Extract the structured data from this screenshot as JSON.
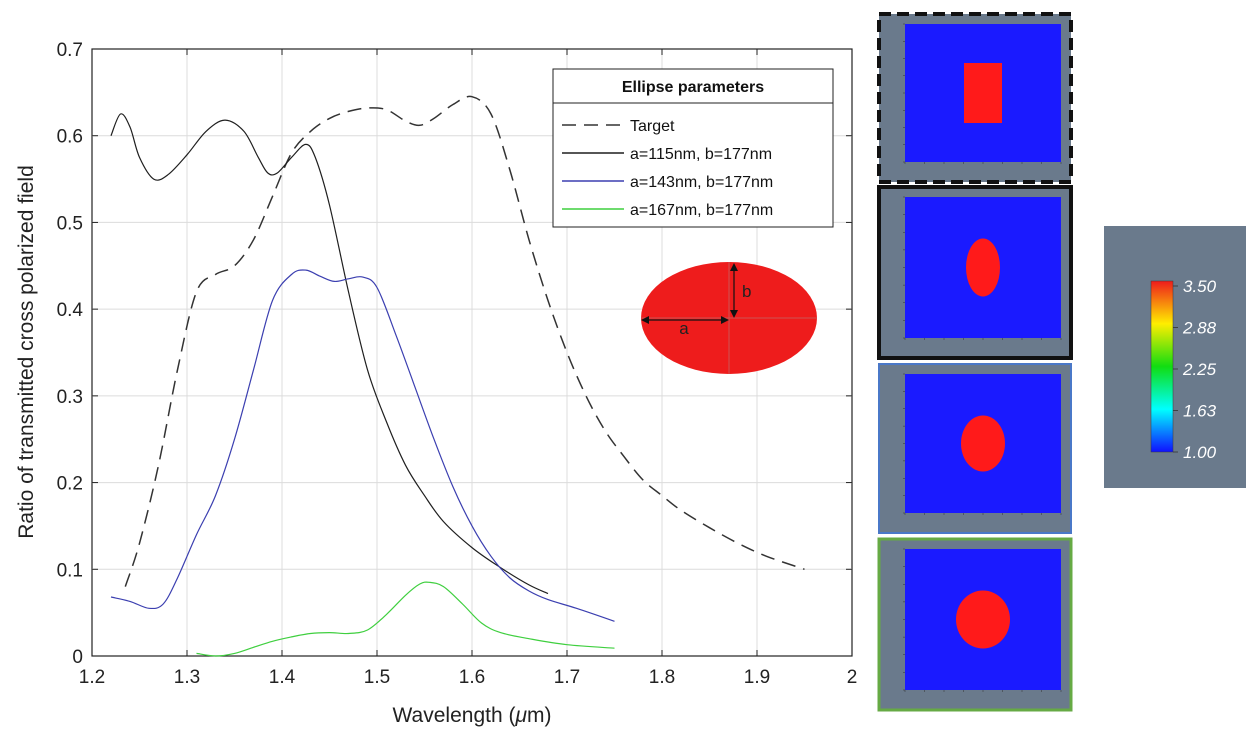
{
  "chart_data": {
    "type": "line",
    "xlabel_prefix": "Wavelength (",
    "xlabel_mu": "μ",
    "xlabel_suffix": "m)",
    "ylabel": "Ratio of transmitted cross polarized field",
    "xlim": [
      1.2,
      2.0
    ],
    "ylim": [
      0,
      0.7
    ],
    "xticks": [
      "1.2",
      "1.3",
      "1.4",
      "1.5",
      "1.6",
      "1.7",
      "1.8",
      "1.9",
      "2"
    ],
    "yticks": [
      "0",
      "0.1",
      "0.2",
      "0.3",
      "0.4",
      "0.5",
      "0.6",
      "0.7"
    ],
    "grid": true,
    "legend": {
      "title": "Ellipse parameters",
      "placement": "top-right"
    },
    "series": [
      {
        "name": "Target",
        "color": "#333333",
        "dash": true,
        "points": [
          [
            1.235,
            0.08
          ],
          [
            1.25,
            0.13
          ],
          [
            1.27,
            0.22
          ],
          [
            1.29,
            0.33
          ],
          [
            1.31,
            0.42
          ],
          [
            1.33,
            0.44
          ],
          [
            1.35,
            0.45
          ],
          [
            1.37,
            0.48
          ],
          [
            1.39,
            0.53
          ],
          [
            1.41,
            0.58
          ],
          [
            1.43,
            0.605
          ],
          [
            1.45,
            0.62
          ],
          [
            1.47,
            0.628
          ],
          [
            1.49,
            0.632
          ],
          [
            1.51,
            0.63
          ],
          [
            1.53,
            0.617
          ],
          [
            1.545,
            0.612
          ],
          [
            1.56,
            0.62
          ],
          [
            1.58,
            0.636
          ],
          [
            1.6,
            0.645
          ],
          [
            1.62,
            0.625
          ],
          [
            1.64,
            0.56
          ],
          [
            1.66,
            0.48
          ],
          [
            1.68,
            0.41
          ],
          [
            1.7,
            0.35
          ],
          [
            1.72,
            0.3
          ],
          [
            1.74,
            0.26
          ],
          [
            1.76,
            0.23
          ],
          [
            1.78,
            0.203
          ],
          [
            1.8,
            0.185
          ],
          [
            1.82,
            0.168
          ],
          [
            1.85,
            0.148
          ],
          [
            1.88,
            0.13
          ],
          [
            1.91,
            0.115
          ],
          [
            1.95,
            0.1
          ]
        ]
      },
      {
        "name": "a=115nm, b=177nm",
        "color": "#1f1f1f",
        "dash": false,
        "points": [
          [
            1.22,
            0.6
          ],
          [
            1.23,
            0.625
          ],
          [
            1.24,
            0.61
          ],
          [
            1.25,
            0.575
          ],
          [
            1.265,
            0.55
          ],
          [
            1.28,
            0.555
          ],
          [
            1.3,
            0.578
          ],
          [
            1.32,
            0.605
          ],
          [
            1.34,
            0.618
          ],
          [
            1.36,
            0.605
          ],
          [
            1.375,
            0.575
          ],
          [
            1.385,
            0.557
          ],
          [
            1.395,
            0.557
          ],
          [
            1.41,
            0.575
          ],
          [
            1.425,
            0.59
          ],
          [
            1.435,
            0.575
          ],
          [
            1.45,
            0.52
          ],
          [
            1.47,
            0.42
          ],
          [
            1.49,
            0.33
          ],
          [
            1.51,
            0.27
          ],
          [
            1.53,
            0.22
          ],
          [
            1.55,
            0.185
          ],
          [
            1.57,
            0.155
          ],
          [
            1.6,
            0.125
          ],
          [
            1.63,
            0.102
          ],
          [
            1.66,
            0.082
          ],
          [
            1.68,
            0.072
          ]
        ]
      },
      {
        "name": "a=143nm, b=177nm",
        "color": "#3b3fb0",
        "dash": false,
        "points": [
          [
            1.22,
            0.068
          ],
          [
            1.24,
            0.063
          ],
          [
            1.26,
            0.055
          ],
          [
            1.275,
            0.06
          ],
          [
            1.29,
            0.09
          ],
          [
            1.31,
            0.14
          ],
          [
            1.33,
            0.185
          ],
          [
            1.35,
            0.25
          ],
          [
            1.37,
            0.33
          ],
          [
            1.39,
            0.41
          ],
          [
            1.41,
            0.44
          ],
          [
            1.425,
            0.445
          ],
          [
            1.44,
            0.438
          ],
          [
            1.455,
            0.432
          ],
          [
            1.47,
            0.435
          ],
          [
            1.485,
            0.437
          ],
          [
            1.5,
            0.425
          ],
          [
            1.52,
            0.37
          ],
          [
            1.54,
            0.31
          ],
          [
            1.56,
            0.25
          ],
          [
            1.58,
            0.195
          ],
          [
            1.6,
            0.15
          ],
          [
            1.62,
            0.115
          ],
          [
            1.64,
            0.09
          ],
          [
            1.66,
            0.075
          ],
          [
            1.68,
            0.065
          ],
          [
            1.71,
            0.055
          ],
          [
            1.75,
            0.04
          ]
        ]
      },
      {
        "name": "a=167nm, b=177nm",
        "color": "#3fcf3f",
        "dash": false,
        "points": [
          [
            1.31,
            0.003
          ],
          [
            1.33,
            0.0
          ],
          [
            1.35,
            0.003
          ],
          [
            1.37,
            0.01
          ],
          [
            1.39,
            0.017
          ],
          [
            1.41,
            0.022
          ],
          [
            1.43,
            0.026
          ],
          [
            1.45,
            0.027
          ],
          [
            1.47,
            0.026
          ],
          [
            1.49,
            0.03
          ],
          [
            1.51,
            0.048
          ],
          [
            1.53,
            0.07
          ],
          [
            1.545,
            0.083
          ],
          [
            1.555,
            0.085
          ],
          [
            1.57,
            0.08
          ],
          [
            1.59,
            0.06
          ],
          [
            1.61,
            0.038
          ],
          [
            1.63,
            0.027
          ],
          [
            1.66,
            0.02
          ],
          [
            1.7,
            0.013
          ],
          [
            1.75,
            0.009
          ]
        ]
      }
    ],
    "inset_ellipse": {
      "fill": "#ee1c1c",
      "label_a": "a",
      "label_b": "b"
    }
  },
  "side_panels": [
    {
      "shape": "rectangle",
      "border_color": "#111111",
      "border_style": "dashed",
      "border_width": 4
    },
    {
      "shape": "ellipse",
      "border_color": "#111111",
      "border_style": "solid",
      "border_width": 4
    },
    {
      "shape": "ellipse-wider",
      "border_color": "#4a78c8",
      "border_style": "solid",
      "border_width": 2
    },
    {
      "shape": "ellipse-widest",
      "border_color": "#66aa44",
      "border_style": "solid",
      "border_width": 3
    }
  ],
  "colorbar": {
    "labels": [
      "3.50",
      "2.88",
      "2.25",
      "1.63",
      "1.00"
    ],
    "stops": [
      "#ee1c1c",
      "#ffee00",
      "#11dd11",
      "#00ffff",
      "#1010ff"
    ]
  },
  "colors": {
    "panel_gray": "#6a7a8c",
    "field_blue": "#1a1aff",
    "inclusion_red": "#ff1a1a"
  }
}
